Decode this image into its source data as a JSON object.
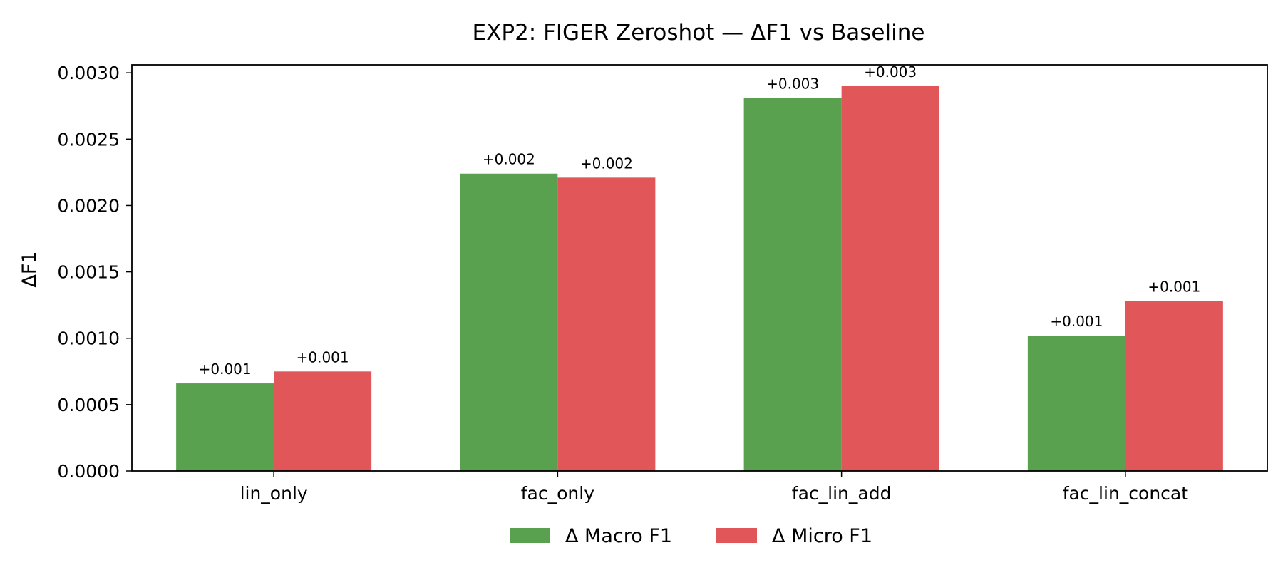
{
  "chart_data": {
    "type": "bar",
    "title": "EXP2: FIGER Zeroshot — ΔF1 vs Baseline",
    "xlabel": "",
    "ylabel": "ΔF1",
    "categories": [
      "lin_only",
      "fac_only",
      "fac_lin_add",
      "fac_lin_concat"
    ],
    "series": [
      {
        "name": "Δ Macro F1",
        "color": "#59a14f",
        "values": [
          0.00066,
          0.00224,
          0.00281,
          0.00102
        ],
        "labels": [
          "+0.001",
          "+0.002",
          "+0.003",
          "+0.001"
        ]
      },
      {
        "name": "Δ Micro F1",
        "color": "#e15759",
        "values": [
          0.00075,
          0.00221,
          0.0029,
          0.00128
        ],
        "labels": [
          "+0.001",
          "+0.002",
          "+0.003",
          "+0.001"
        ]
      }
    ],
    "ylim": [
      0,
      0.00306
    ],
    "yticks": [
      "0.0000",
      "0.0005",
      "0.0010",
      "0.0015",
      "0.0020",
      "0.0025",
      "0.0030"
    ],
    "grid": false,
    "legend_position": "bottom-center"
  }
}
